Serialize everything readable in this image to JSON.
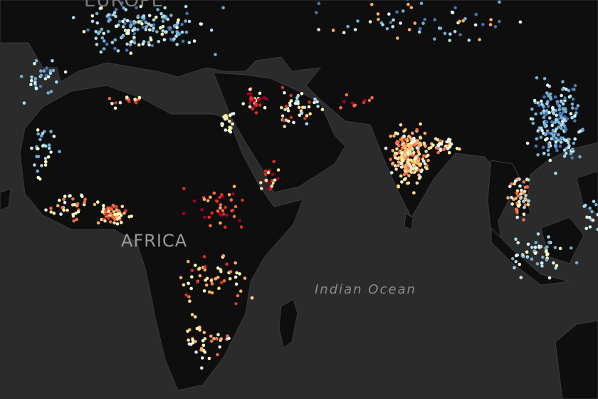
{
  "map": {
    "labels": {
      "europe": "EUROPE",
      "africa": "AFRICA",
      "indian_ocean": "Indian Ocean"
    },
    "colors": {
      "ocean": "#2b2b2c",
      "land": "#0e0e0f",
      "border": "#3a3a3c"
    },
    "point_palette": [
      "#a50026",
      "#d73027",
      "#f46d43",
      "#fdae61",
      "#fee090",
      "#ffffbf",
      "#e0f3f8",
      "#abd9e9",
      "#74add1",
      "#4575b4"
    ]
  }
}
